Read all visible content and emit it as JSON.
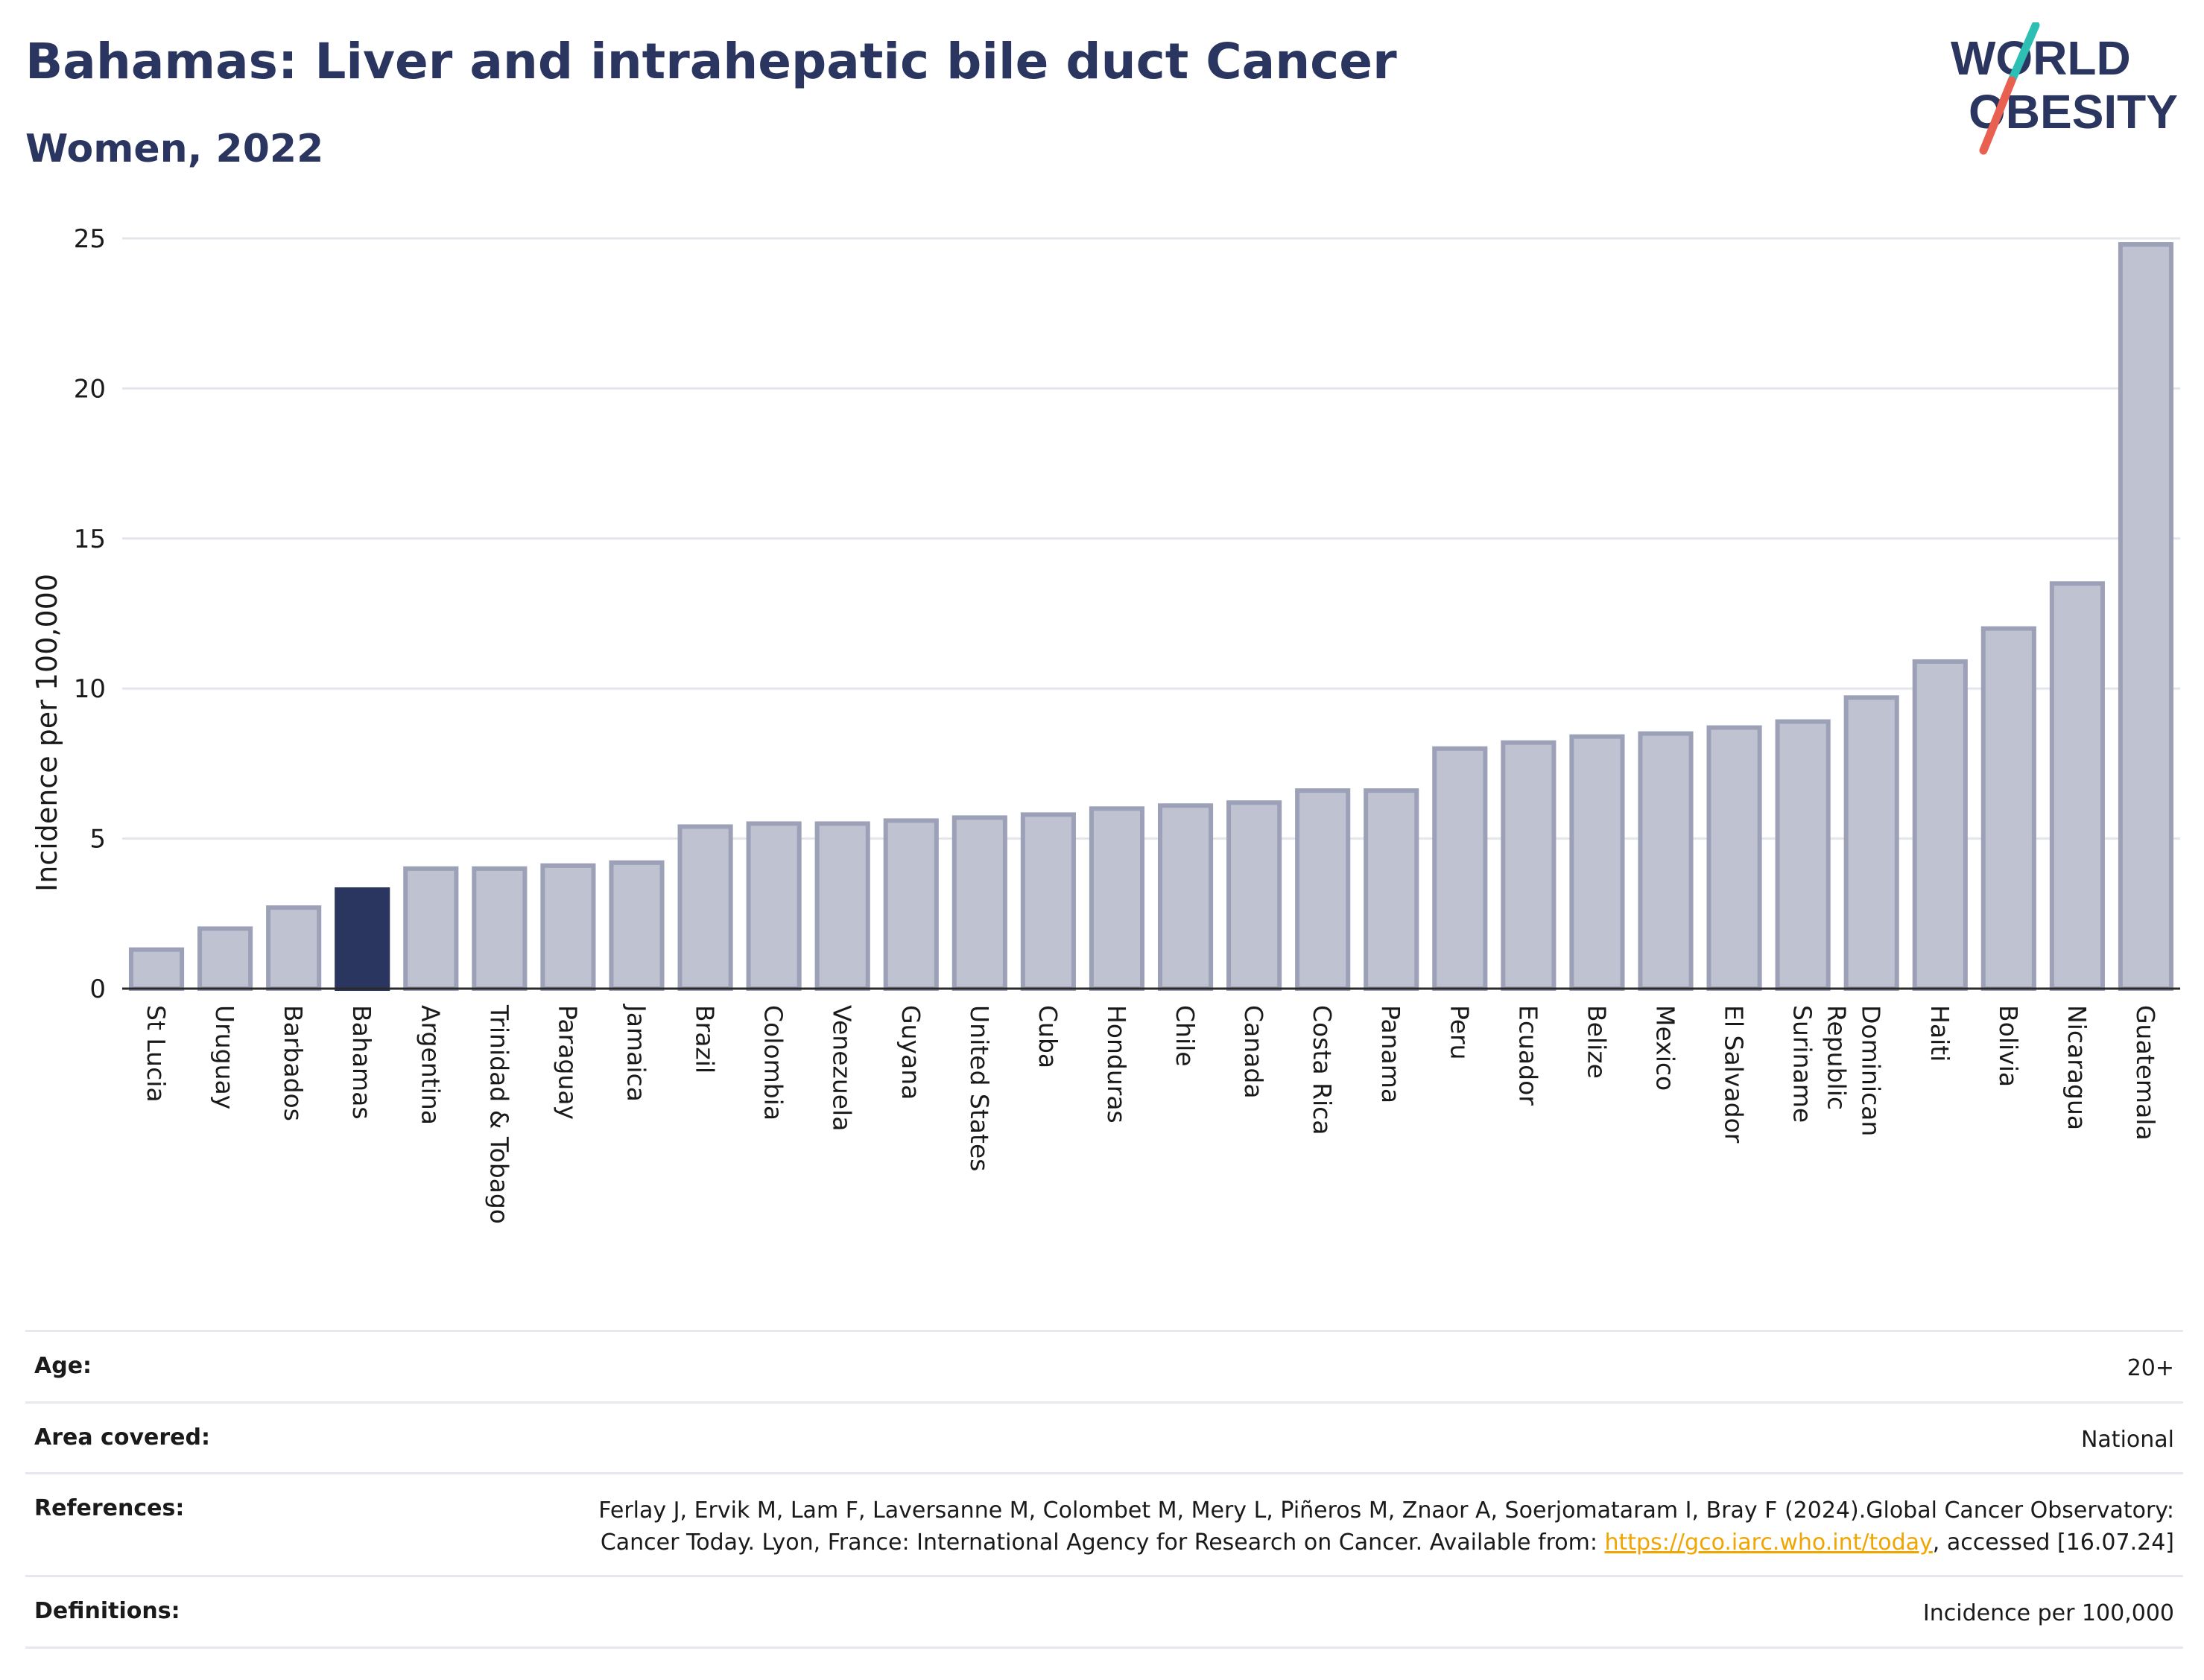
{
  "header": {
    "title": "Bahamas: Liver and intrahepatic bile duct Cancer",
    "subtitle": "Women, 2022"
  },
  "logo": {
    "line1": "WORLD",
    "line2": "OBESITY",
    "text_color": "#2a3560",
    "slash_top_color": "#2ebfb4",
    "slash_bottom_color": "#e8604f"
  },
  "chart_data": {
    "type": "bar",
    "title": "Bahamas: Liver and intrahepatic bile duct Cancer",
    "subtitle": "Women, 2022",
    "xlabel": "",
    "ylabel": "Incidence per 100,000",
    "ylim": [
      0,
      25
    ],
    "yticks": [
      0,
      5,
      10,
      15,
      20,
      25
    ],
    "grid": true,
    "highlight": "Bahamas",
    "colors": {
      "bar": "#bfc2d0",
      "bar_edge": "#9ca1b8",
      "highlight": "#2a3560"
    },
    "categories": [
      "St Lucia",
      "Uruguay",
      "Barbados",
      "Bahamas",
      "Argentina",
      "Trinidad & Tobago",
      "Paraguay",
      "Jamaica",
      "Brazil",
      "Colombia",
      "Venezuela",
      "Guyana",
      "United States",
      "Cuba",
      "Honduras",
      "Chile",
      "Canada",
      "Costa Rica",
      "Panama",
      "Peru",
      "Ecuador",
      "Belize",
      "Mexico",
      "El Salvador",
      "Suriname",
      "Dominican Republic",
      "Haiti",
      "Bolivia",
      "Nicaragua",
      "Guatemala"
    ],
    "values": [
      1.3,
      2.0,
      2.7,
      3.3,
      4.0,
      4.0,
      4.1,
      4.2,
      5.4,
      5.5,
      5.5,
      5.6,
      5.7,
      5.8,
      6.0,
      6.1,
      6.2,
      6.6,
      6.6,
      8.0,
      8.2,
      8.4,
      8.5,
      8.7,
      8.9,
      9.7,
      10.9,
      12.0,
      13.5,
      24.8
    ]
  },
  "info": {
    "age_label": "Age:",
    "age_value": "20+",
    "area_label": "Area covered:",
    "area_value": "National",
    "references_label": "References:",
    "references_text_1": "Ferlay J, Ervik M, Lam F, Laversanne M, Colombet M, Mery L, Piñeros M, Znaor A, Soerjomataram I, Bray F (2024).Global Cancer Observatory: Cancer Today. Lyon, France: International Agency for Research on Cancer. Available from: ",
    "references_link": "https://gco.iarc.who.int/today",
    "references_text_2": ", accessed [16.07.24]",
    "definitions_label": "Definitions:",
    "definitions_value": "Incidence per 100,000"
  }
}
